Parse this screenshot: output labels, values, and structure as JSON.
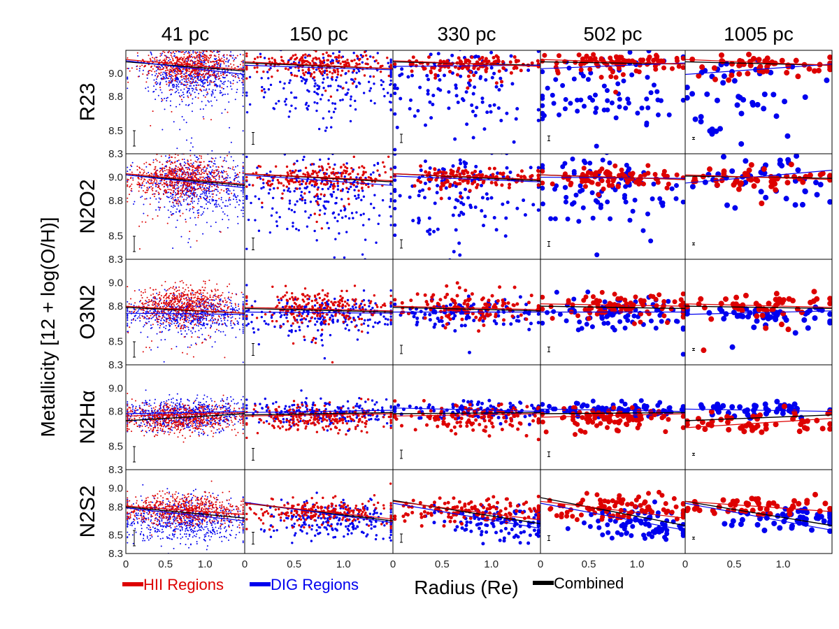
{
  "chart_data": {
    "type": "scatter",
    "ylabel": "Metallicity [12 + log(O/H)]",
    "xlabel": "Radius (Re)",
    "columns": [
      "41 pc",
      "150 pc",
      "330 pc",
      "502 pc",
      "1005 pc"
    ],
    "rows": [
      "R23",
      "N2O2",
      "O3N2",
      "N2Hα",
      "N2S2"
    ],
    "xlim": [
      0,
      1.5
    ],
    "ylim": [
      8.3,
      9.2
    ],
    "x_ticks": [
      "0",
      "0.5",
      "1.0"
    ],
    "y_ticks": [
      "8.3",
      "8.5",
      "8.8",
      "9.0"
    ],
    "legend": [
      {
        "name": "HII Regions",
        "color": "#dd0000"
      },
      {
        "name": "DIG Regions",
        "color": "#0000ee"
      },
      {
        "name": "Combined",
        "color": "#000000"
      }
    ],
    "colors": {
      "hii": "#dd0000",
      "dig": "#0000ee",
      "combined": "#000000"
    },
    "fits": [
      [
        {
          "hii": [
            9.12,
            9.03
          ],
          "dig": [
            9.11,
            8.99
          ],
          "combined": [
            9.1,
            9.02
          ]
        },
        {
          "hii": [
            9.1,
            9.04
          ],
          "dig": [
            9.07,
            9.03
          ],
          "combined": [
            9.09,
            9.04
          ]
        },
        {
          "hii": [
            9.11,
            9.06
          ],
          "dig": [
            9.06,
            9.07
          ],
          "combined": [
            9.1,
            9.07
          ]
        },
        {
          "hii": [
            9.12,
            9.08
          ],
          "dig": [
            9.04,
            9.09
          ],
          "combined": [
            9.1,
            9.08
          ]
        },
        {
          "hii": [
            9.12,
            9.07
          ],
          "dig": [
            8.99,
            9.08
          ],
          "combined": [
            9.1,
            9.07
          ]
        }
      ],
      [
        {
          "hii": [
            9.03,
            8.94
          ],
          "dig": [
            9.02,
            8.91
          ],
          "combined": [
            9.02,
            8.93
          ]
        },
        {
          "hii": [
            9.03,
            8.97
          ],
          "dig": [
            9.02,
            8.93
          ],
          "combined": [
            9.03,
            8.96
          ]
        },
        {
          "hii": [
            9.03,
            8.98
          ],
          "dig": [
            9.01,
            8.96
          ],
          "combined": [
            9.03,
            8.97
          ]
        },
        {
          "hii": [
            9.02,
            8.98
          ],
          "dig": [
            9.0,
            8.99
          ],
          "combined": [
            9.02,
            8.98
          ]
        },
        {
          "hii": [
            9.02,
            8.98
          ],
          "dig": [
            8.95,
            9.06
          ],
          "combined": [
            9.01,
            8.99
          ]
        }
      ],
      [
        {
          "hii": [
            8.8,
            8.74
          ],
          "dig": [
            8.74,
            8.73
          ],
          "combined": [
            8.79,
            8.74
          ]
        },
        {
          "hii": [
            8.79,
            8.76
          ],
          "dig": [
            8.75,
            8.74
          ],
          "combined": [
            8.78,
            8.75
          ]
        },
        {
          "hii": [
            8.8,
            8.77
          ],
          "dig": [
            8.75,
            8.75
          ],
          "combined": [
            8.79,
            8.76
          ]
        },
        {
          "hii": [
            8.82,
            8.8
          ],
          "dig": [
            8.75,
            8.75
          ],
          "combined": [
            8.8,
            8.78
          ]
        },
        {
          "hii": [
            8.82,
            8.79
          ],
          "dig": [
            8.73,
            8.76
          ],
          "combined": [
            8.8,
            8.78
          ]
        }
      ],
      [
        {
          "hii": [
            8.76,
            8.79
          ],
          "dig": [
            8.78,
            8.8
          ],
          "combined": [
            8.72,
            8.78
          ]
        },
        {
          "hii": [
            8.76,
            8.78
          ],
          "dig": [
            8.79,
            8.81
          ],
          "combined": [
            8.77,
            8.79
          ]
        },
        {
          "hii": [
            8.76,
            8.78
          ],
          "dig": [
            8.83,
            8.8
          ],
          "combined": [
            8.78,
            8.79
          ]
        },
        {
          "hii": [
            8.75,
            8.78
          ],
          "dig": [
            8.82,
            8.8
          ],
          "combined": [
            8.78,
            8.79
          ]
        },
        {
          "hii": [
            8.66,
            8.74
          ],
          "dig": [
            8.82,
            8.8
          ],
          "combined": [
            8.72,
            8.77
          ]
        }
      ],
      [
        {
          "hii": [
            8.81,
            8.72
          ],
          "dig": [
            8.79,
            8.65
          ],
          "combined": [
            8.8,
            8.68
          ]
        },
        {
          "hii": [
            8.84,
            8.67
          ],
          "dig": [
            8.85,
            8.63
          ],
          "combined": [
            8.84,
            8.65
          ]
        },
        {
          "hii": [
            8.86,
            8.66
          ],
          "dig": [
            8.84,
            8.57
          ],
          "combined": [
            8.87,
            8.62
          ]
        },
        {
          "hii": [
            8.86,
            8.68
          ],
          "dig": [
            8.84,
            8.55
          ],
          "combined": [
            8.9,
            8.6
          ]
        },
        {
          "hii": [
            8.86,
            8.75
          ],
          "dig": [
            8.84,
            8.55
          ],
          "combined": [
            8.86,
            8.6
          ]
        }
      ]
    ],
    "clouds": [
      [
        {
          "hii": [
            0.8,
            9.07,
            0.28,
            0.07
          ],
          "dig": [
            0.9,
            9.0,
            0.35,
            0.12
          ]
        },
        {
          "hii": [
            0.75,
            9.08,
            0.35,
            0.05
          ],
          "dig": [
            0.9,
            8.95,
            0.4,
            0.17
          ]
        },
        {
          "hii": [
            0.8,
            9.08,
            0.35,
            0.04
          ],
          "dig": [
            0.7,
            8.95,
            0.4,
            0.2
          ]
        },
        {
          "hii": [
            0.8,
            9.09,
            0.35,
            0.04
          ],
          "dig": [
            0.6,
            8.9,
            0.4,
            0.22
          ]
        },
        {
          "hii": [
            0.8,
            9.07,
            0.4,
            0.05
          ],
          "dig": [
            0.6,
            8.9,
            0.4,
            0.2
          ]
        }
      ],
      [
        {
          "hii": [
            0.7,
            8.99,
            0.3,
            0.08
          ],
          "dig": [
            0.9,
            8.94,
            0.35,
            0.12
          ]
        },
        {
          "hii": [
            0.75,
            9.0,
            0.35,
            0.06
          ],
          "dig": [
            0.8,
            8.88,
            0.4,
            0.16
          ]
        },
        {
          "hii": [
            0.8,
            9.0,
            0.35,
            0.04
          ],
          "dig": [
            0.7,
            8.9,
            0.4,
            0.18
          ]
        },
        {
          "hii": [
            0.8,
            9.0,
            0.35,
            0.04
          ],
          "dig": [
            0.7,
            8.92,
            0.4,
            0.15
          ]
        },
        {
          "hii": [
            0.8,
            9.0,
            0.35,
            0.04
          ],
          "dig": [
            0.8,
            8.95,
            0.4,
            0.12
          ]
        }
      ],
      [
        {
          "hii": [
            0.75,
            8.82,
            0.3,
            0.08
          ],
          "dig": [
            0.8,
            8.73,
            0.4,
            0.07
          ]
        },
        {
          "hii": [
            0.8,
            8.8,
            0.35,
            0.07
          ],
          "dig": [
            0.8,
            8.73,
            0.4,
            0.07
          ]
        },
        {
          "hii": [
            0.8,
            8.8,
            0.35,
            0.06
          ],
          "dig": [
            0.8,
            8.74,
            0.4,
            0.06
          ]
        },
        {
          "hii": [
            0.8,
            8.8,
            0.35,
            0.05
          ],
          "dig": [
            0.8,
            8.74,
            0.4,
            0.06
          ]
        },
        {
          "hii": [
            0.8,
            8.8,
            0.35,
            0.05
          ],
          "dig": [
            0.8,
            8.74,
            0.4,
            0.05
          ]
        }
      ],
      [
        {
          "hii": [
            0.7,
            8.74,
            0.38,
            0.06
          ],
          "dig": [
            0.75,
            8.77,
            0.4,
            0.07
          ]
        },
        {
          "hii": [
            0.75,
            8.74,
            0.38,
            0.06
          ],
          "dig": [
            0.8,
            8.79,
            0.4,
            0.05
          ]
        },
        {
          "hii": [
            0.8,
            8.74,
            0.38,
            0.06
          ],
          "dig": [
            0.8,
            8.8,
            0.4,
            0.04
          ]
        },
        {
          "hii": [
            0.8,
            8.73,
            0.38,
            0.06
          ],
          "dig": [
            0.8,
            8.81,
            0.4,
            0.03
          ]
        },
        {
          "hii": [
            0.8,
            8.72,
            0.38,
            0.05
          ],
          "dig": [
            0.8,
            8.81,
            0.4,
            0.03
          ]
        }
      ],
      [
        {
          "hii": [
            0.75,
            8.77,
            0.38,
            0.08
          ],
          "dig": [
            0.75,
            8.66,
            0.4,
            0.12
          ]
        },
        {
          "hii": [
            0.75,
            8.75,
            0.38,
            0.07
          ],
          "dig": [
            1.0,
            8.65,
            0.35,
            0.1
          ]
        },
        {
          "hii": [
            0.8,
            8.76,
            0.38,
            0.07
          ],
          "dig": [
            1.1,
            8.62,
            0.3,
            0.1
          ]
        },
        {
          "hii": [
            0.8,
            8.78,
            0.38,
            0.07
          ],
          "dig": [
            1.1,
            8.62,
            0.3,
            0.08
          ]
        },
        {
          "hii": [
            0.8,
            8.8,
            0.38,
            0.06
          ],
          "dig": [
            1.1,
            8.67,
            0.3,
            0.06
          ]
        }
      ]
    ]
  }
}
